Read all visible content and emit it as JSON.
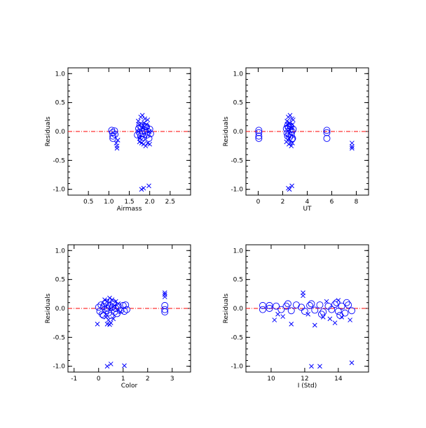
{
  "chart_data": [
    {
      "type": "scatter",
      "xlabel": "Airmass",
      "ylabel": "Residuals",
      "xlim": [
        0,
        3
      ],
      "ylim": [
        -1.1,
        1.1
      ],
      "xticks": [
        0.5,
        1.0,
        1.5,
        2.0,
        2.5
      ],
      "xtick_labels": [
        "0.5",
        "1.0",
        "1.5",
        "2.0",
        "2.5"
      ],
      "yticks": [
        -1.0,
        -0.5,
        0.0,
        0.5,
        1.0
      ],
      "ytick_labels": [
        "-1.0",
        "-0.5",
        "0.0",
        "0.5",
        "1.0"
      ],
      "reference_line": 0,
      "series": [
        {
          "marker": "circle",
          "points": [
            [
              1.07,
              0.02
            ],
            [
              1.09,
              -0.02
            ],
            [
              1.1,
              -0.08
            ],
            [
              1.1,
              -0.12
            ],
            [
              1.14,
              0.01
            ],
            [
              1.15,
              -0.05
            ],
            [
              1.73,
              0.05
            ],
            [
              1.75,
              -0.02
            ],
            [
              1.78,
              -0.08
            ],
            [
              1.8,
              0.06
            ],
            [
              1.82,
              -0.04
            ],
            [
              1.85,
              -0.1
            ],
            [
              1.88,
              0.02
            ],
            [
              1.9,
              0.08
            ],
            [
              1.93,
              -0.06
            ],
            [
              1.95,
              0.0
            ],
            [
              1.98,
              -0.12
            ],
            [
              2.0,
              0.04
            ],
            [
              1.76,
              0.1
            ],
            [
              1.84,
              0.1
            ],
            [
              1.92,
              0.08
            ],
            [
              1.8,
              -0.13
            ],
            [
              1.7,
              -0.06
            ],
            [
              2.02,
              -0.04
            ]
          ]
        },
        {
          "marker": "x",
          "points": [
            [
              1.2,
              -0.25
            ],
            [
              1.2,
              -0.29
            ],
            [
              1.18,
              -0.2
            ],
            [
              1.22,
              -0.15
            ],
            [
              1.78,
              0.25
            ],
            [
              1.82,
              0.28
            ],
            [
              1.88,
              0.22
            ],
            [
              1.95,
              0.2
            ],
            [
              1.72,
              0.18
            ],
            [
              1.75,
              -0.18
            ],
            [
              1.85,
              -0.22
            ],
            [
              1.9,
              -0.25
            ],
            [
              1.95,
              -0.2
            ],
            [
              2.0,
              -0.22
            ],
            [
              1.8,
              -0.2
            ],
            [
              1.74,
              0.12
            ],
            [
              1.86,
              0.15
            ],
            [
              1.92,
              0.12
            ],
            [
              1.76,
              -0.12
            ],
            [
              1.84,
              0.06
            ],
            [
              1.99,
              0.0
            ],
            [
              1.73,
              0.0
            ],
            [
              1.8,
              -1.0
            ],
            [
              1.85,
              -0.98
            ],
            [
              1.98,
              -0.94
            ]
          ]
        }
      ]
    },
    {
      "type": "scatter",
      "xlabel": "UT",
      "ylabel": "Residuals",
      "xlim": [
        -1,
        9
      ],
      "ylim": [
        -1.1,
        1.1
      ],
      "xticks": [
        0,
        2,
        4,
        6,
        8
      ],
      "xtick_labels": [
        "0",
        "2",
        "4",
        "6",
        "8"
      ],
      "yticks": [
        -1.0,
        -0.5,
        0.0,
        0.5,
        1.0
      ],
      "ytick_labels": [
        "-1.0",
        "-0.5",
        "0.0",
        "0.5",
        "1.0"
      ],
      "reference_line": 0,
      "series": [
        {
          "marker": "circle",
          "points": [
            [
              0.05,
              0.02
            ],
            [
              0.05,
              -0.02
            ],
            [
              0.05,
              -0.08
            ],
            [
              0.05,
              -0.12
            ],
            [
              2.3,
              0.05
            ],
            [
              2.35,
              -0.03
            ],
            [
              2.4,
              -0.08
            ],
            [
              2.45,
              0.07
            ],
            [
              2.5,
              -0.04
            ],
            [
              2.55,
              -0.1
            ],
            [
              2.6,
              0.03
            ],
            [
              2.65,
              0.08
            ],
            [
              2.7,
              -0.06
            ],
            [
              2.75,
              0.0
            ],
            [
              2.8,
              -0.12
            ],
            [
              2.85,
              0.04
            ],
            [
              2.4,
              0.1
            ],
            [
              2.6,
              0.1
            ],
            [
              2.75,
              -0.13
            ],
            [
              5.6,
              0.02
            ],
            [
              5.6,
              -0.02
            ],
            [
              5.6,
              -0.12
            ]
          ]
        },
        {
          "marker": "x",
          "points": [
            [
              2.45,
              0.25
            ],
            [
              2.6,
              0.28
            ],
            [
              2.75,
              0.22
            ],
            [
              2.85,
              0.2
            ],
            [
              2.35,
              0.18
            ],
            [
              2.3,
              -0.18
            ],
            [
              2.5,
              -0.22
            ],
            [
              2.7,
              -0.25
            ],
            [
              2.8,
              -0.2
            ],
            [
              2.6,
              -0.2
            ],
            [
              2.4,
              0.12
            ],
            [
              2.55,
              0.15
            ],
            [
              2.8,
              0.12
            ],
            [
              2.7,
              0.06
            ],
            [
              2.5,
              -0.12
            ],
            [
              2.45,
              -0.98
            ],
            [
              2.55,
              -1.0
            ],
            [
              2.75,
              -0.94
            ],
            [
              7.65,
              -0.2
            ],
            [
              7.65,
              -0.26
            ],
            [
              7.65,
              -0.29
            ]
          ]
        }
      ]
    },
    {
      "type": "scatter",
      "xlabel": "Color",
      "ylabel": "Residuals",
      "xlim": [
        -1.25,
        3.75
      ],
      "ylim": [
        -1.1,
        1.1
      ],
      "xticks": [
        -1,
        0,
        1,
        2,
        3
      ],
      "xtick_labels": [
        "-1",
        "0",
        "1",
        "2",
        "3"
      ],
      "yticks": [
        -1.0,
        -0.5,
        0.0,
        0.5,
        1.0
      ],
      "ytick_labels": [
        "-1.0",
        "-0.5",
        "0.0",
        "0.5",
        "1.0"
      ],
      "reference_line": 0,
      "series": [
        {
          "marker": "circle",
          "points": [
            [
              0.0,
              0.02
            ],
            [
              0.05,
              -0.05
            ],
            [
              0.1,
              0.06
            ],
            [
              0.15,
              -0.1
            ],
            [
              0.2,
              0.03
            ],
            [
              0.25,
              0.08
            ],
            [
              0.3,
              -0.04
            ],
            [
              0.35,
              0.0
            ],
            [
              0.4,
              -0.08
            ],
            [
              0.45,
              0.05
            ],
            [
              0.5,
              -0.12
            ],
            [
              0.55,
              0.02
            ],
            [
              0.6,
              0.07
            ],
            [
              0.65,
              -0.06
            ],
            [
              0.7,
              0.0
            ],
            [
              0.75,
              -0.09
            ],
            [
              0.8,
              0.04
            ],
            [
              0.9,
              -0.03
            ],
            [
              1.0,
              0.05
            ],
            [
              1.05,
              -0.05
            ],
            [
              1.1,
              0.06
            ],
            [
              1.15,
              -0.02
            ],
            [
              0.3,
              0.1
            ],
            [
              0.6,
              0.1
            ],
            [
              0.2,
              -0.12
            ],
            [
              2.7,
              0.05
            ],
            [
              2.7,
              -0.02
            ],
            [
              2.7,
              -0.06
            ]
          ]
        },
        {
          "marker": "x",
          "points": [
            [
              0.25,
              0.15
            ],
            [
              0.35,
              0.12
            ],
            [
              0.45,
              0.18
            ],
            [
              0.55,
              0.15
            ],
            [
              0.3,
              -0.15
            ],
            [
              0.4,
              -0.2
            ],
            [
              0.5,
              -0.25
            ],
            [
              0.35,
              -0.27
            ],
            [
              0.45,
              -0.28
            ],
            [
              0.6,
              -0.18
            ],
            [
              0.7,
              0.12
            ],
            [
              0.8,
              0.08
            ],
            [
              0.9,
              -0.06
            ],
            [
              0.65,
              0.05
            ],
            [
              0.5,
              0.0
            ],
            [
              -0.05,
              -0.27
            ],
            [
              0.35,
              -1.0
            ],
            [
              0.5,
              -0.96
            ],
            [
              1.05,
              -0.99
            ],
            [
              2.7,
              0.2
            ],
            [
              2.7,
              0.24
            ],
            [
              2.7,
              0.27
            ]
          ]
        }
      ]
    },
    {
      "type": "scatter",
      "xlabel": "I (Std)",
      "ylabel": "Residuals",
      "xlim": [
        8.5,
        15.8
      ],
      "ylim": [
        -1.1,
        1.1
      ],
      "xticks": [
        10,
        12,
        14
      ],
      "xtick_labels": [
        "10",
        "12",
        "14"
      ],
      "yticks": [
        -1.0,
        -0.5,
        0.0,
        0.5,
        1.0
      ],
      "ytick_labels": [
        "-1.0",
        "-0.5",
        "0.0",
        "0.5",
        "1.0"
      ],
      "reference_line": 0,
      "series": [
        {
          "marker": "circle",
          "points": [
            [
              9.5,
              0.05
            ],
            [
              9.5,
              -0.02
            ],
            [
              9.9,
              0.05
            ],
            [
              9.9,
              0.0
            ],
            [
              10.3,
              0.04
            ],
            [
              10.6,
              -0.02
            ],
            [
              10.9,
              0.04
            ],
            [
              11.2,
              -0.04
            ],
            [
              11.5,
              0.06
            ],
            [
              11.8,
              0.02
            ],
            [
              12.0,
              -0.05
            ],
            [
              12.3,
              0.05
            ],
            [
              12.6,
              -0.03
            ],
            [
              12.9,
              0.06
            ],
            [
              13.1,
              -0.06
            ],
            [
              13.4,
              0.04
            ],
            [
              13.6,
              -0.02
            ],
            [
              13.8,
              0.07
            ],
            [
              14.0,
              -0.05
            ],
            [
              14.2,
              0.04
            ],
            [
              14.4,
              -0.08
            ],
            [
              14.6,
              0.06
            ],
            [
              14.8,
              -0.04
            ],
            [
              11.0,
              0.08
            ],
            [
              12.4,
              0.08
            ],
            [
              13.9,
              0.1
            ],
            [
              14.5,
              0.1
            ],
            [
              13.0,
              -0.1
            ],
            [
              14.1,
              -0.12
            ]
          ]
        },
        {
          "marker": "x",
          "points": [
            [
              10.4,
              -0.1
            ],
            [
              10.7,
              -0.14
            ],
            [
              10.2,
              -0.2
            ],
            [
              11.2,
              -0.27
            ],
            [
              11.9,
              0.22
            ],
            [
              11.9,
              0.27
            ],
            [
              12.2,
              -0.1
            ],
            [
              12.6,
              -0.29
            ],
            [
              13.1,
              -0.15
            ],
            [
              13.5,
              -0.18
            ],
            [
              13.8,
              -0.25
            ],
            [
              14.2,
              -0.15
            ],
            [
              14.7,
              -0.2
            ],
            [
              13.3,
              0.12
            ],
            [
              14.0,
              0.14
            ],
            [
              12.4,
              -1.0
            ],
            [
              12.9,
              -1.0
            ],
            [
              14.8,
              -0.94
            ]
          ]
        }
      ]
    }
  ]
}
